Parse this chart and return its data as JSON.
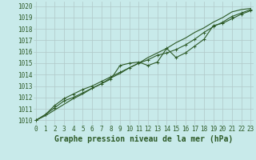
{
  "x": [
    0,
    1,
    2,
    3,
    4,
    5,
    6,
    7,
    8,
    9,
    10,
    11,
    12,
    13,
    14,
    15,
    16,
    17,
    18,
    19,
    20,
    21,
    22,
    23
  ],
  "line1_marked": [
    1010.0,
    1010.5,
    1011.1,
    1011.7,
    1012.0,
    1012.4,
    1012.8,
    1013.2,
    1013.6,
    1014.8,
    1015.0,
    1015.1,
    1014.8,
    1015.1,
    1016.3,
    1015.5,
    1015.9,
    1016.5,
    1017.1,
    1018.3,
    1018.5,
    1018.9,
    1019.3,
    1019.6
  ],
  "line2_marked": [
    1010.0,
    1010.5,
    1011.3,
    1011.9,
    1012.3,
    1012.7,
    1013.0,
    1013.4,
    1013.8,
    1014.2,
    1014.6,
    1015.0,
    1015.3,
    1015.7,
    1015.9,
    1016.2,
    1016.6,
    1017.1,
    1017.7,
    1018.2,
    1018.6,
    1019.1,
    1019.4,
    1019.7
  ],
  "line3_straight": [
    1010.0,
    1010.4,
    1010.9,
    1011.4,
    1011.9,
    1012.3,
    1012.8,
    1013.2,
    1013.7,
    1014.1,
    1014.6,
    1015.0,
    1015.5,
    1015.9,
    1016.3,
    1016.8,
    1017.2,
    1017.7,
    1018.1,
    1018.6,
    1019.0,
    1019.5,
    1019.7,
    1019.8
  ],
  "bg_color": "#c8eaea",
  "grid_color": "#b0c8c8",
  "line_color": "#2d5a27",
  "ylabel_ticks": [
    1010,
    1011,
    1012,
    1013,
    1014,
    1015,
    1016,
    1017,
    1018,
    1019,
    1020
  ],
  "xlabel_ticks": [
    0,
    1,
    2,
    3,
    4,
    5,
    6,
    7,
    8,
    9,
    10,
    11,
    12,
    13,
    14,
    15,
    16,
    17,
    18,
    19,
    20,
    21,
    22,
    23
  ],
  "ylim": [
    1009.6,
    1020.4
  ],
  "xlim": [
    -0.3,
    23.3
  ],
  "xlabel": "Graphe pression niveau de la mer (hPa)",
  "xlabel_fontsize": 7,
  "tick_fontsize": 5.5,
  "line_width": 0.8,
  "marker_size": 2.5
}
